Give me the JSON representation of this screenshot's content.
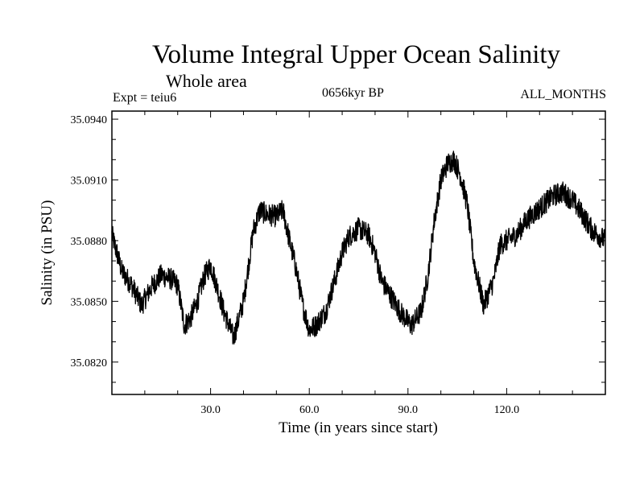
{
  "header": {
    "title": "Volume Integral Upper Ocean Salinity",
    "subtitle": "Whole area",
    "experiment": "Expt = teiu6",
    "period": "0656kyr BP",
    "months": "ALL_MONTHS"
  },
  "chart_data": {
    "type": "line",
    "title": "Volume Integral Upper Ocean Salinity",
    "xlabel": "Time (in years since start)",
    "ylabel": "Salinity (in PSU)",
    "xlim": [
      0,
      150
    ],
    "ylim": [
      35.0804,
      35.0944
    ],
    "x_ticks": [
      30,
      60,
      90,
      120
    ],
    "x_tick_labels": [
      "30.0",
      "60.0",
      "90.0",
      "120.0"
    ],
    "y_ticks": [
      35.082,
      35.085,
      35.088,
      35.091,
      35.094
    ],
    "y_tick_labels": [
      "35.0820",
      "35.0850",
      "35.0880",
      "35.0910",
      "35.0940"
    ],
    "sampling": "monthly",
    "noise_amplitude": 0.00055,
    "series": [
      {
        "name": "Salinity",
        "color": "#000000",
        "x": [
          0,
          3,
          6,
          9,
          12,
          15,
          18,
          20,
          22,
          24,
          26,
          28,
          30,
          32,
          34,
          37,
          40,
          43,
          45,
          47,
          50,
          52,
          54,
          56,
          58,
          60,
          62,
          65,
          68,
          70,
          72,
          75,
          78,
          80,
          82,
          85,
          88,
          91,
          94,
          96,
          98,
          100,
          102,
          104,
          106,
          108,
          110,
          113,
          116,
          118,
          120,
          123,
          126,
          130,
          134,
          137,
          140,
          143,
          146,
          150
        ],
        "values": [
          35.0883,
          35.0865,
          35.0858,
          35.0848,
          35.0857,
          35.0863,
          35.0861,
          35.0858,
          35.0838,
          35.0842,
          35.085,
          35.0862,
          35.0868,
          35.0857,
          35.0845,
          35.0832,
          35.085,
          35.0885,
          35.0895,
          35.0893,
          35.0892,
          35.0895,
          35.088,
          35.0866,
          35.0848,
          35.0836,
          35.0838,
          35.0845,
          35.0862,
          35.0874,
          35.0882,
          35.0886,
          35.0883,
          35.0874,
          35.086,
          35.0852,
          35.0844,
          35.0838,
          35.0845,
          35.0862,
          35.089,
          35.091,
          35.0918,
          35.092,
          35.0912,
          35.0898,
          35.087,
          35.0848,
          35.086,
          35.0878,
          35.088,
          35.0883,
          35.089,
          35.0896,
          35.0902,
          35.0904,
          35.09,
          35.0893,
          35.0885,
          35.088
        ]
      }
    ]
  }
}
